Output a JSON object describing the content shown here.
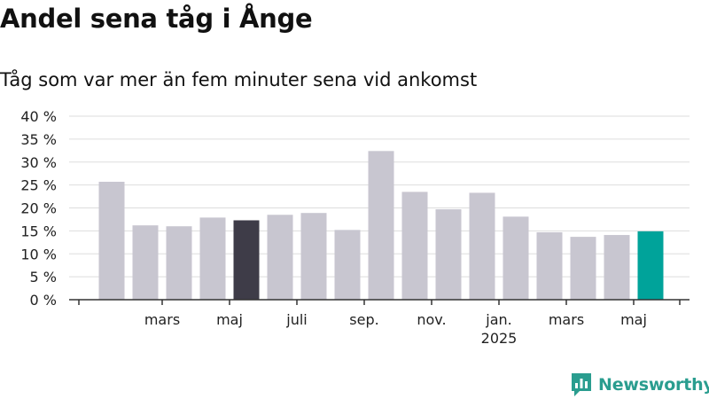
{
  "header": {
    "title": "Andel sena tåg i Ånge",
    "subtitle": "Tåg som var mer än fem minuter sena vid ankomst"
  },
  "brand": {
    "name": "Newsworthy",
    "icon": "newsworthy-logo-icon"
  },
  "colors": {
    "bar_default": "#c8c6d0",
    "bar_highlight_dark": "#3e3c48",
    "bar_highlight_teal": "#00a39a",
    "grid": "#dddddd",
    "axis": "#333333",
    "brand": "#2a9d8f"
  },
  "chart_data": {
    "type": "bar",
    "title": "Andel sena tåg i Ånge",
    "subtitle": "Tåg som var mer än fem minuter sena vid ankomst",
    "categories": [
      "2024-02",
      "2024-03",
      "2024-04",
      "2024-05",
      "2024-06",
      "2024-07",
      "2024-08",
      "2024-09",
      "2024-10",
      "2024-11",
      "2024-12",
      "2025-01",
      "2025-02",
      "2025-03",
      "2025-04",
      "2025-05",
      "2025-06"
    ],
    "values": [
      25.7,
      16.2,
      16.0,
      17.9,
      17.3,
      18.5,
      18.9,
      15.2,
      32.4,
      23.5,
      19.7,
      23.3,
      18.1,
      14.7,
      13.7,
      14.1,
      14.9
    ],
    "highlight": {
      "2024-06": "dark",
      "2025-06": "teal"
    },
    "xlabel": "",
    "ylabel": "",
    "ylim": [
      0,
      40
    ],
    "y_ticks": [
      0,
      5,
      10,
      15,
      20,
      25,
      30,
      35,
      40
    ],
    "y_tick_labels": [
      "0 %",
      "5 %",
      "10 %",
      "15 %",
      "20 %",
      "25 %",
      "30 %",
      "35 %",
      "40 %"
    ],
    "x_tick_labels": [
      {
        "category": "2024-03",
        "label": "mars"
      },
      {
        "category": "2024-05",
        "label": "maj"
      },
      {
        "category": "2024-07",
        "label": "juli"
      },
      {
        "category": "2024-09",
        "label": "sep."
      },
      {
        "category": "2024-11",
        "label": "nov."
      },
      {
        "category": "2025-01",
        "label": "jan.",
        "sublabel": "2025"
      },
      {
        "category": "2025-03",
        "label": "mars"
      },
      {
        "category": "2025-05",
        "label": "maj"
      }
    ],
    "grid": true,
    "legend": "none"
  }
}
